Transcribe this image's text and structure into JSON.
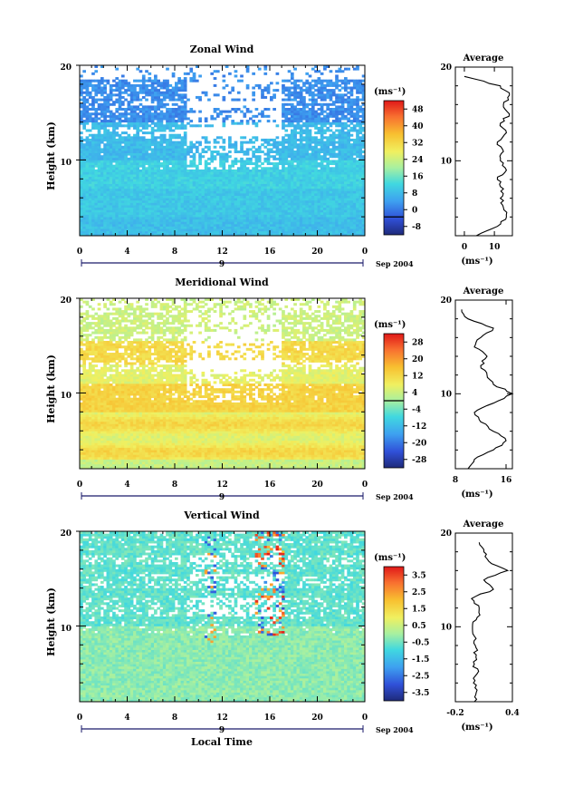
{
  "figure": {
    "bottom_xlabel": "Local Time"
  },
  "chart_data": [
    {
      "type": "heatmap",
      "title": "Zonal Wind",
      "ylabel": "Height (km)",
      "x_ticks": [
        "0",
        "4",
        "8",
        "12",
        "16",
        "20",
        "0"
      ],
      "date_label": "9",
      "date_suffix": "Sep 2004",
      "y_ticks": [
        "20",
        "10"
      ],
      "xlim": [
        0,
        24
      ],
      "ylim": [
        2,
        20
      ],
      "colorbar": {
        "unit": "(ms⁻¹)",
        "ticks": [
          "48",
          "40",
          "32",
          "24",
          "16",
          "8",
          "0",
          "-8"
        ],
        "range": [
          -8,
          52
        ],
        "zero_line": 0
      },
      "profile": {
        "title": "Average",
        "xlabel": "(ms⁻¹)",
        "x_ticks": [
          "0",
          "10"
        ],
        "xlim": [
          -3,
          16
        ],
        "height": [
          2,
          3,
          4,
          5,
          6,
          7,
          8,
          9,
          10,
          11,
          12,
          13,
          14,
          15,
          16,
          17,
          18,
          19
        ],
        "values": [
          4,
          11,
          14,
          13,
          12,
          13,
          11,
          14,
          12,
          13,
          11,
          14,
          12,
          15,
          13,
          15,
          12,
          0
        ]
      }
    },
    {
      "type": "heatmap",
      "title": "Meridional Wind",
      "ylabel": "Height (km)",
      "x_ticks": [
        "0",
        "4",
        "8",
        "12",
        "16",
        "20",
        "0"
      ],
      "date_label": "9",
      "date_suffix": "Sep 2004",
      "y_ticks": [
        "20",
        "10"
      ],
      "xlim": [
        0,
        24
      ],
      "ylim": [
        2,
        20
      ],
      "colorbar": {
        "unit": "(ms⁻¹)",
        "ticks": [
          "28",
          "20",
          "12",
          "4",
          "-4",
          "-12",
          "-20",
          "-28"
        ],
        "range": [
          -32,
          32
        ],
        "zero_line": 0
      },
      "profile": {
        "title": "Average",
        "xlabel": "(ms⁻¹)",
        "x_ticks": [
          "8",
          "16"
        ],
        "xlim": [
          8,
          17
        ],
        "height": [
          2,
          3,
          4,
          5,
          6,
          7,
          8,
          9,
          10,
          11,
          12,
          13,
          14,
          15,
          16,
          17,
          18,
          19
        ],
        "values": [
          10,
          11,
          14,
          16,
          14,
          12,
          11,
          14,
          17,
          14,
          13,
          12,
          13,
          11,
          12,
          14,
          10,
          9
        ]
      }
    },
    {
      "type": "heatmap",
      "title": "Vertical Wind",
      "ylabel": "Height (km)",
      "x_ticks": [
        "0",
        "4",
        "8",
        "12",
        "16",
        "20",
        "0"
      ],
      "date_label": "9",
      "date_suffix": "Sep 2004",
      "y_ticks": [
        "20",
        "10"
      ],
      "xlim": [
        0,
        24
      ],
      "ylim": [
        2,
        20
      ],
      "colorbar": {
        "unit": "(ms⁻¹)",
        "ticks": [
          "3.5",
          "2.5",
          "1.5",
          "0.5",
          "-0.5",
          "-1.5",
          "-2.5",
          "-3.5"
        ],
        "range": [
          -4,
          4
        ],
        "zero_line": null
      },
      "profile": {
        "title": "Average",
        "xlabel": "(ms⁻¹)",
        "x_ticks": [
          "-0.2",
          "0.4"
        ],
        "xlim": [
          -0.2,
          0.4
        ],
        "height": [
          2,
          3,
          4,
          5,
          6,
          7,
          8,
          9,
          10,
          11,
          12,
          13,
          14,
          15,
          16,
          17,
          18,
          19
        ],
        "values": [
          0.0,
          0.02,
          -0.01,
          0.03,
          0.0,
          0.02,
          0.01,
          0.0,
          -0.02,
          0.03,
          0.05,
          -0.03,
          0.2,
          0.1,
          0.35,
          0.15,
          0.1,
          0.05
        ]
      }
    }
  ]
}
